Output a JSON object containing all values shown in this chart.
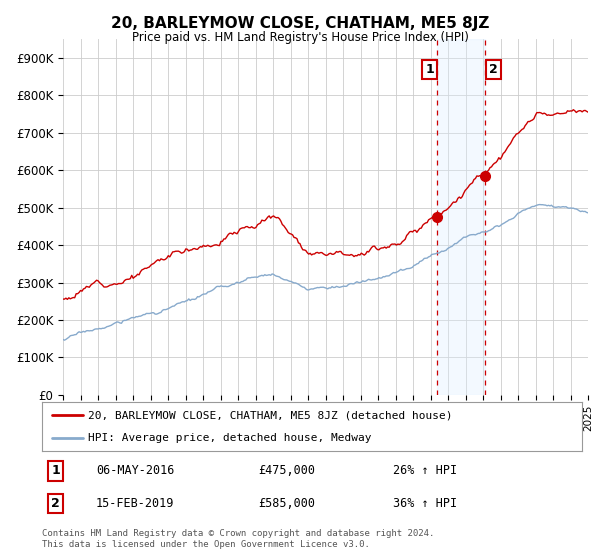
{
  "title": "20, BARLEYMOW CLOSE, CHATHAM, ME5 8JZ",
  "subtitle": "Price paid vs. HM Land Registry's House Price Index (HPI)",
  "ylabel_ticks": [
    "£0",
    "£100K",
    "£200K",
    "£300K",
    "£400K",
    "£500K",
    "£600K",
    "£700K",
    "£800K",
    "£900K"
  ],
  "ytick_values": [
    0,
    100000,
    200000,
    300000,
    400000,
    500000,
    600000,
    700000,
    800000,
    900000
  ],
  "ylim": [
    0,
    950000
  ],
  "year_start": 1995,
  "year_end": 2025,
  "red_line_color": "#cc0000",
  "blue_line_color": "#88aacc",
  "marker1_date": 2016.35,
  "marker1_value": 475000,
  "marker2_date": 2019.12,
  "marker2_value": 585000,
  "vline_color": "#cc0000",
  "highlight_color": "#ddeeff",
  "legend_label_red": "20, BARLEYMOW CLOSE, CHATHAM, ME5 8JZ (detached house)",
  "legend_label_blue": "HPI: Average price, detached house, Medway",
  "annotation1_label": "1",
  "annotation1_date": "06-MAY-2016",
  "annotation1_price": "£475,000",
  "annotation1_hpi": "26% ↑ HPI",
  "annotation2_label": "2",
  "annotation2_date": "15-FEB-2019",
  "annotation2_price": "£585,000",
  "annotation2_hpi": "36% ↑ HPI",
  "footer": "Contains HM Land Registry data © Crown copyright and database right 2024.\nThis data is licensed under the Open Government Licence v3.0.",
  "background_color": "#ffffff",
  "grid_color": "#cccccc"
}
